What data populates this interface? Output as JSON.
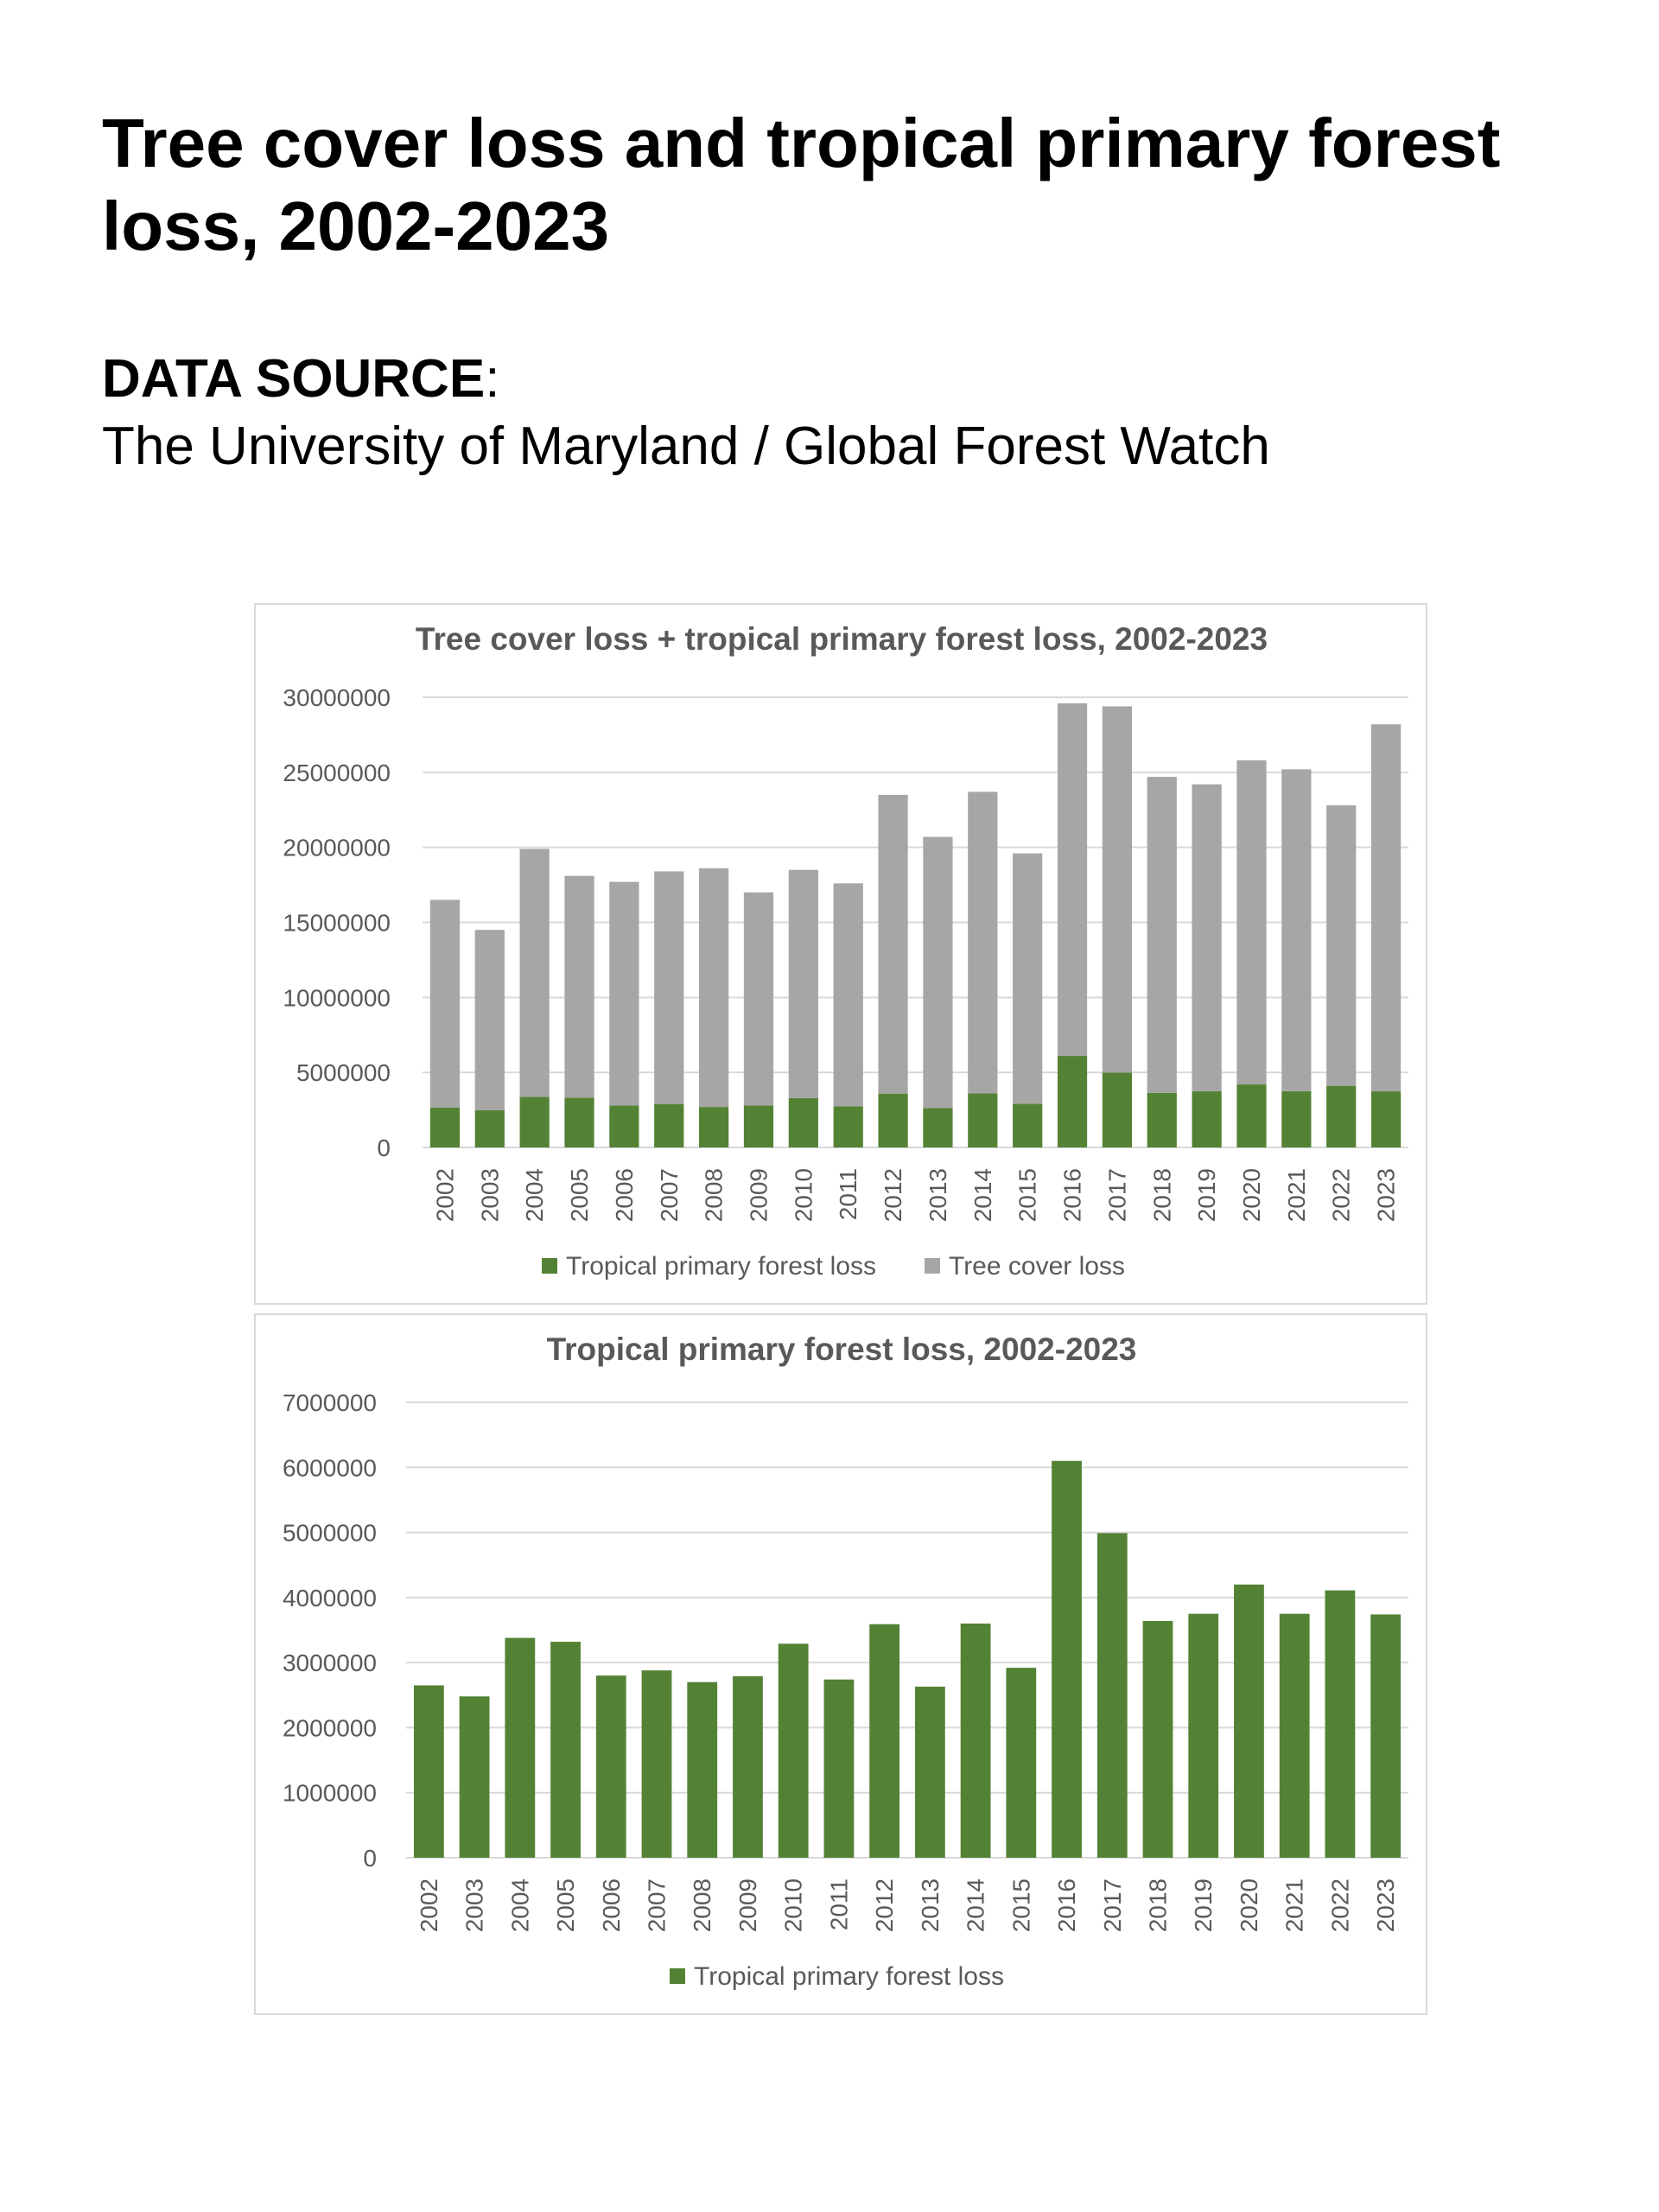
{
  "page": {
    "title": "Tree cover loss and tropical primary forest loss, 2002-2023",
    "source_label": "DATA SOURCE",
    "source_colon": ":",
    "source_text": "The University of Maryland / Global Forest Watch"
  },
  "colors": {
    "tropical": "#548235",
    "tree_cover": "#a6a6a6",
    "grid": "#d9d9d9",
    "text": "#595959"
  },
  "chart_data": [
    {
      "type": "bar",
      "stacked": true,
      "title": "Tree cover loss + tropical primary forest loss, 2002-2023",
      "categories": [
        "2002",
        "2003",
        "2004",
        "2005",
        "2006",
        "2007",
        "2008",
        "2009",
        "2010",
        "2011",
        "2012",
        "2013",
        "2014",
        "2015",
        "2016",
        "2017",
        "2018",
        "2019",
        "2020",
        "2021",
        "2022",
        "2023"
      ],
      "series": [
        {
          "name": "Tropical primary forest loss",
          "color": "#548235",
          "values": [
            2650000,
            2480000,
            3380000,
            3320000,
            2800000,
            2880000,
            2700000,
            2790000,
            3290000,
            2740000,
            3590000,
            2630000,
            3600000,
            2920000,
            6100000,
            4990000,
            3640000,
            3750000,
            4200000,
            3750000,
            4110000,
            3740000
          ]
        },
        {
          "name": "Tree cover loss",
          "color": "#a6a6a6",
          "values": [
            13850000,
            12020000,
            16520000,
            14780000,
            14900000,
            15520000,
            15900000,
            14210000,
            15210000,
            14860000,
            19910000,
            18070000,
            20100000,
            16680000,
            23500000,
            24410000,
            21060000,
            20450000,
            21600000,
            21450000,
            18690000,
            24460000
          ]
        }
      ],
      "ylim": [
        0,
        30000000
      ],
      "yticks": [
        "0",
        "5000000",
        "10000000",
        "15000000",
        "20000000",
        "25000000",
        "30000000"
      ],
      "grid": true,
      "legend": "bottom"
    },
    {
      "type": "bar",
      "title": "Tropical primary forest loss, 2002-2023",
      "categories": [
        "2002",
        "2003",
        "2004",
        "2005",
        "2006",
        "2007",
        "2008",
        "2009",
        "2010",
        "2011",
        "2012",
        "2013",
        "2014",
        "2015",
        "2016",
        "2017",
        "2018",
        "2019",
        "2020",
        "2021",
        "2022",
        "2023"
      ],
      "series": [
        {
          "name": "Tropical primary forest loss",
          "color": "#548235",
          "values": [
            2650000,
            2480000,
            3380000,
            3320000,
            2800000,
            2880000,
            2700000,
            2790000,
            3290000,
            2740000,
            3590000,
            2630000,
            3600000,
            2920000,
            6100000,
            4990000,
            3640000,
            3750000,
            4200000,
            3750000,
            4110000,
            3740000
          ]
        }
      ],
      "ylim": [
        0,
        7000000
      ],
      "yticks": [
        "0",
        "1000000",
        "2000000",
        "3000000",
        "4000000",
        "5000000",
        "6000000",
        "7000000"
      ],
      "grid": true,
      "legend": "bottom"
    }
  ]
}
